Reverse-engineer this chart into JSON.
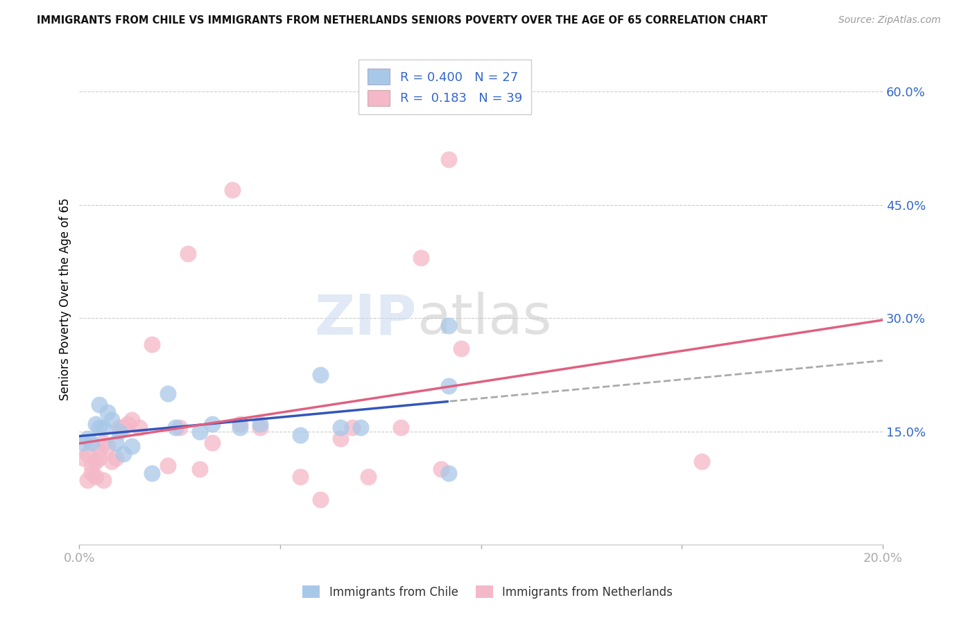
{
  "title": "IMMIGRANTS FROM CHILE VS IMMIGRANTS FROM NETHERLANDS SENIORS POVERTY OVER THE AGE OF 65 CORRELATION CHART",
  "source": "Source: ZipAtlas.com",
  "ylabel": "Seniors Poverty Over the Age of 65",
  "xlim": [
    0.0,
    0.2
  ],
  "ylim": [
    0.0,
    0.65
  ],
  "xticks": [
    0.0,
    0.05,
    0.1,
    0.15,
    0.2
  ],
  "xticklabels": [
    "0.0%",
    "",
    "",
    "",
    "20.0%"
  ],
  "yticks_right": [
    0.0,
    0.15,
    0.3,
    0.45,
    0.6
  ],
  "ytick_labels_right": [
    "",
    "15.0%",
    "30.0%",
    "45.0%",
    "60.0%"
  ],
  "chile_color": "#a8c8e8",
  "netherlands_color": "#f4b8c8",
  "chile_R": 0.4,
  "chile_N": 27,
  "netherlands_R": 0.183,
  "netherlands_N": 39,
  "trend_color_chile": "#3355bb",
  "trend_color_netherlands": "#e06080",
  "watermark_zip": "ZIP",
  "watermark_atlas": "atlas",
  "chile_points_x": [
    0.001,
    0.002,
    0.003,
    0.004,
    0.005,
    0.005,
    0.006,
    0.007,
    0.008,
    0.009,
    0.01,
    0.011,
    0.013,
    0.018,
    0.022,
    0.024,
    0.03,
    0.033,
    0.04,
    0.045,
    0.055,
    0.06,
    0.065,
    0.07,
    0.092,
    0.092,
    0.092
  ],
  "chile_points_y": [
    0.135,
    0.14,
    0.135,
    0.16,
    0.155,
    0.185,
    0.155,
    0.175,
    0.165,
    0.135,
    0.15,
    0.12,
    0.13,
    0.095,
    0.2,
    0.155,
    0.15,
    0.16,
    0.155,
    0.16,
    0.145,
    0.225,
    0.155,
    0.155,
    0.29,
    0.21,
    0.095
  ],
  "netherlands_points_x": [
    0.001,
    0.002,
    0.002,
    0.003,
    0.003,
    0.004,
    0.004,
    0.005,
    0.005,
    0.006,
    0.006,
    0.007,
    0.008,
    0.009,
    0.01,
    0.011,
    0.012,
    0.013,
    0.015,
    0.018,
    0.022,
    0.025,
    0.027,
    0.03,
    0.033,
    0.038,
    0.04,
    0.045,
    0.055,
    0.06,
    0.065,
    0.068,
    0.072,
    0.08,
    0.085,
    0.09,
    0.092,
    0.095,
    0.155
  ],
  "netherlands_points_y": [
    0.115,
    0.085,
    0.12,
    0.095,
    0.105,
    0.11,
    0.09,
    0.125,
    0.115,
    0.135,
    0.085,
    0.13,
    0.11,
    0.115,
    0.155,
    0.155,
    0.16,
    0.165,
    0.155,
    0.265,
    0.105,
    0.155,
    0.385,
    0.1,
    0.135,
    0.47,
    0.16,
    0.155,
    0.09,
    0.06,
    0.14,
    0.155,
    0.09,
    0.155,
    0.38,
    0.1,
    0.51,
    0.26,
    0.11
  ]
}
